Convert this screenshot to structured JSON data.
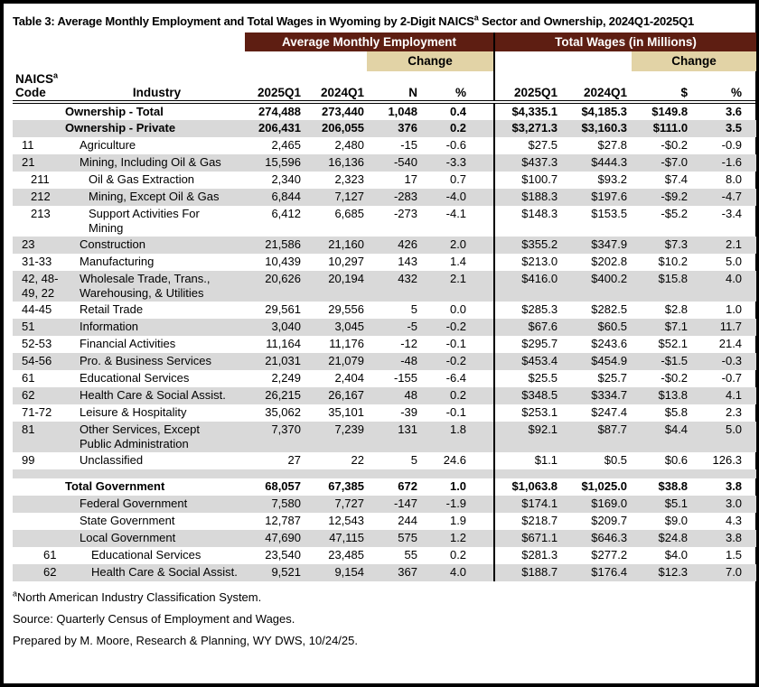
{
  "title": {
    "pre": "Table 3: Average Monthly Employment and Total Wages in Wyoming by 2-Digit NAICS",
    "sup": "a",
    "post": " Sector and Ownership, 2024Q1-2025Q1"
  },
  "colors": {
    "maroon": "#5e1e12",
    "tan": "#e2d3a6",
    "stripe": "#d9d9d9"
  },
  "header": {
    "employment_group": "Average Monthly Employment",
    "wages_group": "Total Wages (in Millions)",
    "change": "Change",
    "naics": "NAICS",
    "naics_sup": "a",
    "code": "Code",
    "industry": "Industry",
    "emp_2025q1": "2025Q1",
    "emp_2024q1": "2024Q1",
    "emp_n": "N",
    "emp_pct": "%",
    "wage_2025q1": "2025Q1",
    "wage_2024q1": "2024Q1",
    "wage_dollar": "$",
    "wage_pct": "%"
  },
  "rows": [
    {
      "label": true,
      "industry": "Ownership - Total",
      "e25": "274,488",
      "e24": "273,440",
      "n": "1,048",
      "ep": "0.4",
      "w25": "$4,335.1",
      "w24": "$4,185.3",
      "d": "$149.8",
      "wp": "3.6",
      "bold": true,
      "shaded": false,
      "indent": 0
    },
    {
      "label": true,
      "industry": "Ownership - Private",
      "e25": "206,431",
      "e24": "206,055",
      "n": "376",
      "ep": "0.2",
      "w25": "$3,271.3",
      "w24": "$3,160.3",
      "d": "$111.0",
      "wp": "3.5",
      "bold": true,
      "shaded": true,
      "indent": 0
    },
    {
      "code": "11",
      "industry": "Agriculture",
      "e25": "2,465",
      "e24": "2,480",
      "n": "-15",
      "ep": "-0.6",
      "w25": "$27.5",
      "w24": "$27.8",
      "d": "-$0.2",
      "wp": "-0.9",
      "bold": false,
      "shaded": false,
      "indent": 0
    },
    {
      "code": "21",
      "industry": "Mining, Including Oil & Gas",
      "e25": "15,596",
      "e24": "16,136",
      "n": "-540",
      "ep": "-3.3",
      "w25": "$437.3",
      "w24": "$444.3",
      "d": "-$7.0",
      "wp": "-1.6",
      "bold": false,
      "shaded": true,
      "indent": 0
    },
    {
      "code": "211",
      "industry": "Oil & Gas Extraction",
      "e25": "2,340",
      "e24": "2,323",
      "n": "17",
      "ep": "0.7",
      "w25": "$100.7",
      "w24": "$93.2",
      "d": "$7.4",
      "wp": "8.0",
      "bold": false,
      "shaded": false,
      "indent": 1
    },
    {
      "code": "212",
      "industry": "Mining, Except Oil & Gas",
      "e25": "6,844",
      "e24": "7,127",
      "n": "-283",
      "ep": "-4.0",
      "w25": "$188.3",
      "w24": "$197.6",
      "d": "-$9.2",
      "wp": "-4.7",
      "bold": false,
      "shaded": true,
      "indent": 1
    },
    {
      "code": "213",
      "industry": "Support Activities For\nMining",
      "e25": "6,412",
      "e24": "6,685",
      "n": "-273",
      "ep": "-4.1",
      "w25": "$148.3",
      "w24": "$153.5",
      "d": "-$5.2",
      "wp": "-3.4",
      "bold": false,
      "shaded": false,
      "indent": 1
    },
    {
      "code": "23",
      "industry": "Construction",
      "e25": "21,586",
      "e24": "21,160",
      "n": "426",
      "ep": "2.0",
      "w25": "$355.2",
      "w24": "$347.9",
      "d": "$7.3",
      "wp": "2.1",
      "bold": false,
      "shaded": true,
      "indent": 0
    },
    {
      "code": "31-33",
      "industry": "Manufacturing",
      "e25": "10,439",
      "e24": "10,297",
      "n": "143",
      "ep": "1.4",
      "w25": "$213.0",
      "w24": "$202.8",
      "d": "$10.2",
      "wp": "5.0",
      "bold": false,
      "shaded": false,
      "indent": 0
    },
    {
      "code": "42, 48-\n49, 22",
      "industry": "Wholesale Trade, Trans.,\nWarehousing, & Utilities",
      "e25": "20,626",
      "e24": "20,194",
      "n": "432",
      "ep": "2.1",
      "w25": "$416.0",
      "w24": "$400.2",
      "d": "$15.8",
      "wp": "4.0",
      "bold": false,
      "shaded": true,
      "indent": 0
    },
    {
      "code": "44-45",
      "industry": "Retail Trade",
      "e25": "29,561",
      "e24": "29,556",
      "n": "5",
      "ep": "0.0",
      "w25": "$285.3",
      "w24": "$282.5",
      "d": "$2.8",
      "wp": "1.0",
      "bold": false,
      "shaded": false,
      "indent": 0
    },
    {
      "code": "51",
      "industry": "Information",
      "e25": "3,040",
      "e24": "3,045",
      "n": "-5",
      "ep": "-0.2",
      "w25": "$67.6",
      "w24": "$60.5",
      "d": "$7.1",
      "wp": "11.7",
      "bold": false,
      "shaded": true,
      "indent": 0
    },
    {
      "code": "52-53",
      "industry": "Financial Activities",
      "e25": "11,164",
      "e24": "11,176",
      "n": "-12",
      "ep": "-0.1",
      "w25": "$295.7",
      "w24": "$243.6",
      "d": "$52.1",
      "wp": "21.4",
      "bold": false,
      "shaded": false,
      "indent": 0
    },
    {
      "code": "54-56",
      "industry": "Pro. & Business Services",
      "e25": "21,031",
      "e24": "21,079",
      "n": "-48",
      "ep": "-0.2",
      "w25": "$453.4",
      "w24": "$454.9",
      "d": "-$1.5",
      "wp": "-0.3",
      "bold": false,
      "shaded": true,
      "indent": 0
    },
    {
      "code": "61",
      "industry": "Educational Services",
      "e25": "2,249",
      "e24": "2,404",
      "n": "-155",
      "ep": "-6.4",
      "w25": "$25.5",
      "w24": "$25.7",
      "d": "-$0.2",
      "wp": "-0.7",
      "bold": false,
      "shaded": false,
      "indent": 0
    },
    {
      "code": "62",
      "industry": "Health Care & Social Assist.",
      "e25": "26,215",
      "e24": "26,167",
      "n": "48",
      "ep": "0.2",
      "w25": "$348.5",
      "w24": "$334.7",
      "d": "$13.8",
      "wp": "4.1",
      "bold": false,
      "shaded": true,
      "indent": 0
    },
    {
      "code": "71-72",
      "industry": "Leisure & Hospitality",
      "e25": "35,062",
      "e24": "35,101",
      "n": "-39",
      "ep": "-0.1",
      "w25": "$253.1",
      "w24": "$247.4",
      "d": "$5.8",
      "wp": "2.3",
      "bold": false,
      "shaded": false,
      "indent": 0
    },
    {
      "code": "81",
      "industry": "Other Services, Except\nPublic Administration",
      "e25": "7,370",
      "e24": "7,239",
      "n": "131",
      "ep": "1.8",
      "w25": "$92.1",
      "w24": "$87.7",
      "d": "$4.4",
      "wp": "5.0",
      "bold": false,
      "shaded": true,
      "indent": 0
    },
    {
      "code": "99",
      "industry": "Unclassified",
      "e25": "27",
      "e24": "22",
      "n": "5",
      "ep": "24.6",
      "w25": "$1.1",
      "w24": "$0.5",
      "d": "$0.6",
      "wp": "126.3",
      "bold": false,
      "shaded": false,
      "indent": 0
    },
    {
      "spacer": true,
      "shaded": true
    },
    {
      "label": true,
      "industry": "Total Government",
      "e25": "68,057",
      "e24": "67,385",
      "n": "672",
      "ep": "1.0",
      "w25": "$1,063.8",
      "w24": "$1,025.0",
      "d": "$38.8",
      "wp": "3.8",
      "bold": true,
      "shaded": false,
      "indent": 0
    },
    {
      "code": "",
      "industry": "Federal Government",
      "e25": "7,580",
      "e24": "7,727",
      "n": "-147",
      "ep": "-1.9",
      "w25": "$174.1",
      "w24": "$169.0",
      "d": "$5.1",
      "wp": "3.0",
      "bold": false,
      "shaded": true,
      "indent": 0
    },
    {
      "code": "",
      "industry": "State Government",
      "e25": "12,787",
      "e24": "12,543",
      "n": "244",
      "ep": "1.9",
      "w25": "$218.7",
      "w24": "$209.7",
      "d": "$9.0",
      "wp": "4.3",
      "bold": false,
      "shaded": false,
      "indent": 0
    },
    {
      "code": "",
      "industry": "Local Government",
      "e25": "47,690",
      "e24": "47,115",
      "n": "575",
      "ep": "1.2",
      "w25": "$671.1",
      "w24": "$646.3",
      "d": "$24.8",
      "wp": "3.8",
      "bold": false,
      "shaded": true,
      "indent": 0
    },
    {
      "code": "61",
      "industry": "Educational Services",
      "e25": "23,540",
      "e24": "23,485",
      "n": "55",
      "ep": "0.2",
      "w25": "$281.3",
      "w24": "$277.2",
      "d": "$4.0",
      "wp": "1.5",
      "bold": false,
      "shaded": false,
      "indent": 2
    },
    {
      "code": "62",
      "industry": "Health Care & Social Assist.",
      "e25": "9,521",
      "e24": "9,154",
      "n": "367",
      "ep": "4.0",
      "w25": "$188.7",
      "w24": "$176.4",
      "d": "$12.3",
      "wp": "7.0",
      "bold": false,
      "shaded": true,
      "indent": 2
    }
  ],
  "footnotes": [
    {
      "sup": "a",
      "text": "North American Industry Classification System."
    },
    {
      "sup": "",
      "text": "Source: Quarterly Census of Employment and Wages."
    },
    {
      "sup": "",
      "text": "Prepared by M. Moore, Research & Planning, WY DWS, 10/24/25."
    }
  ]
}
